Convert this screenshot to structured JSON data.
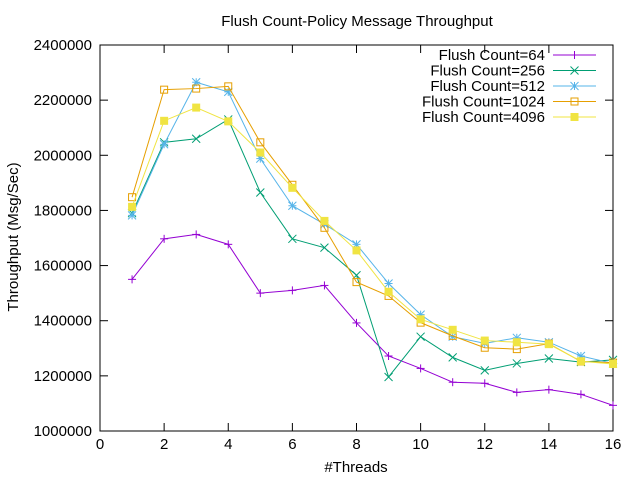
{
  "chart_data": {
    "type": "line",
    "title": "Flush Count-Policy Message Throughput",
    "xlabel": "#Threads",
    "ylabel": "Throughput (Msg/Sec)",
    "xlim": [
      0,
      16
    ],
    "ylim": [
      1000000,
      2400000
    ],
    "xticks": [
      0,
      2,
      4,
      6,
      8,
      10,
      12,
      14,
      16
    ],
    "yticks": [
      1000000,
      1200000,
      1400000,
      1600000,
      1800000,
      2000000,
      2200000,
      2400000
    ],
    "grid": false,
    "legend_position": "top-right",
    "x": [
      1,
      2,
      3,
      4,
      5,
      6,
      7,
      8,
      9,
      10,
      11,
      12,
      13,
      14,
      15,
      16
    ],
    "series": [
      {
        "name": "Flush Count=64",
        "color": "#9400d3",
        "marker": "plus",
        "values": [
          1550000,
          1697000,
          1713000,
          1677000,
          1500000,
          1510000,
          1528000,
          1392000,
          1272000,
          1227000,
          1177000,
          1173000,
          1140000,
          1150000,
          1133000,
          1093000
        ]
      },
      {
        "name": "Flush Count=256",
        "color": "#009e73",
        "marker": "cross",
        "values": [
          1790000,
          2047000,
          2060000,
          2130000,
          1865000,
          1697000,
          1665000,
          1565000,
          1196000,
          1342000,
          1267000,
          1220000,
          1245000,
          1263000,
          1250000,
          1258000
        ]
      },
      {
        "name": "Flush Count=512",
        "color": "#56b4e9",
        "marker": "star",
        "values": [
          1782000,
          2040000,
          2265000,
          2230000,
          1988000,
          1817000,
          1750000,
          1677000,
          1535000,
          1422000,
          1342000,
          1318000,
          1338000,
          1322000,
          1272000,
          1245000
        ]
      },
      {
        "name": "Flush Count=1024",
        "color": "#e69f00",
        "marker": "square-open",
        "values": [
          1848000,
          2238000,
          2242000,
          2250000,
          2047000,
          1893000,
          1737000,
          1540000,
          1490000,
          1393000,
          1345000,
          1302000,
          1297000,
          1317000,
          1252000,
          1248000
        ]
      },
      {
        "name": "Flush Count=4096",
        "color": "#f0e442",
        "marker": "square-filled",
        "values": [
          1813000,
          2125000,
          2173000,
          2123000,
          2010000,
          1882000,
          1762000,
          1655000,
          1505000,
          1405000,
          1367000,
          1328000,
          1322000,
          1315000,
          1253000,
          1243000
        ]
      }
    ]
  }
}
